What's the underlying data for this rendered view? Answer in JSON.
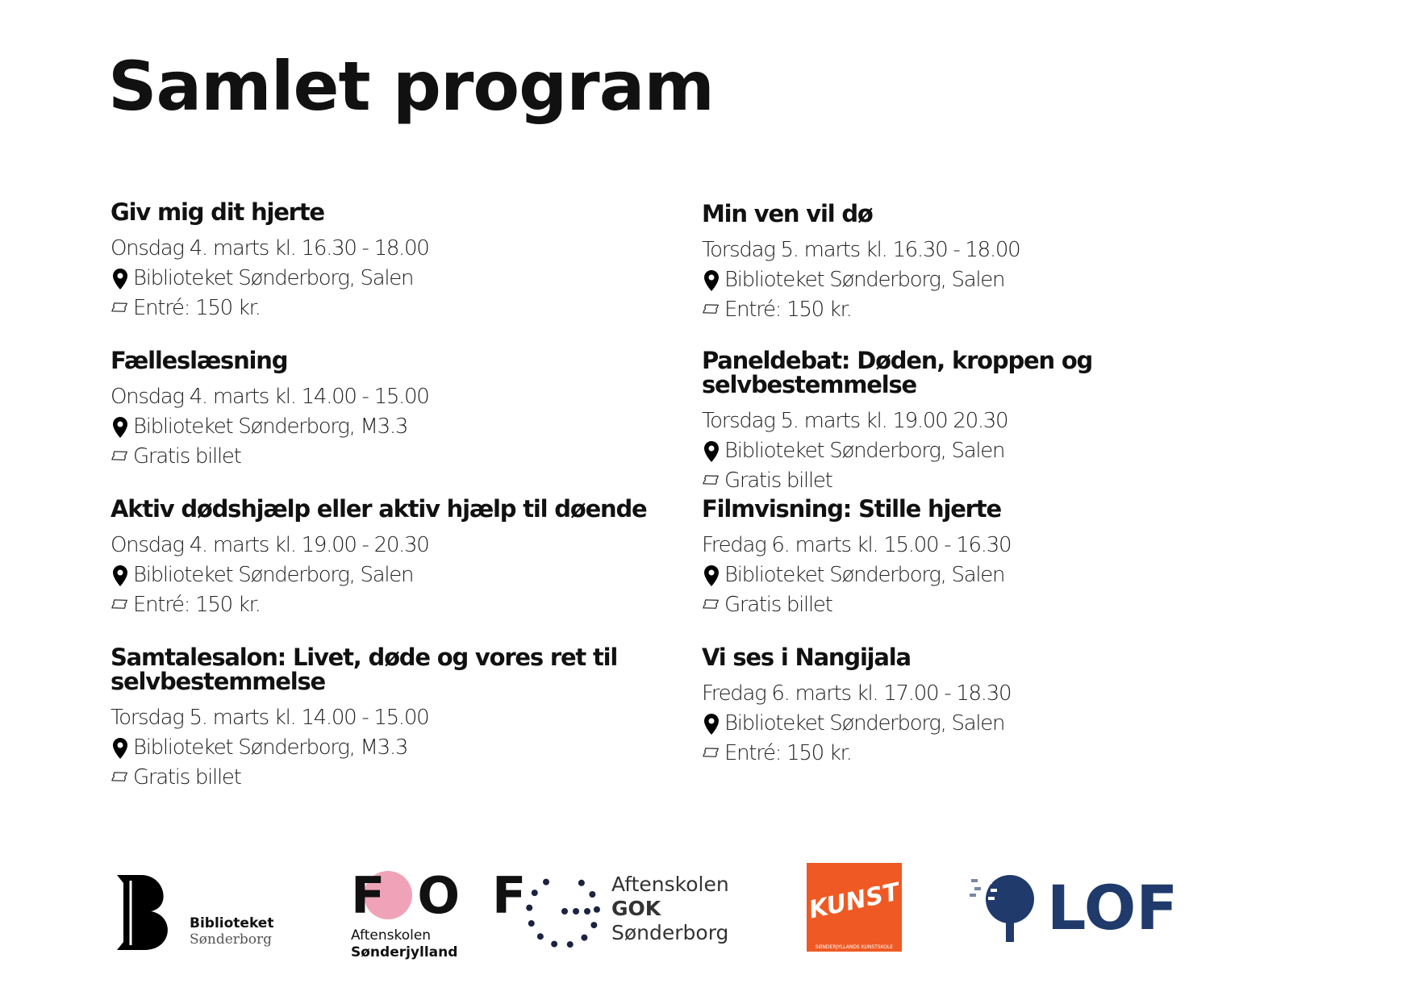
{
  "title": "Samlet program",
  "events": [
    {
      "title": "Giv mig dit hjerte",
      "date": "Onsdag 4. marts kl. 16.30 - 18.00",
      "location": "Biblioteket Sønderborg, Salen",
      "ticket": "Entré: 150 kr."
    },
    {
      "title": "Fælleslæsning",
      "date": "Onsdag 4. marts kl. 14.00 - 15.00",
      "location": "Biblioteket Sønderborg, M3.3",
      "ticket": "Gratis billet"
    },
    {
      "title": "Aktiv dødshjælp eller aktiv hjælp til døende",
      "date": "Onsdag 4. marts kl. 19.00 - 20.30",
      "location": "Biblioteket Sønderborg, Salen",
      "ticket": "Entré: 150 kr."
    },
    {
      "title": "Samtalesalon: Livet, døde og vores ret til selvbestemmelse",
      "date": "Torsdag 5. marts kl. 14.00 - 15.00",
      "location": "Biblioteket Sønderborg, M3.3",
      "ticket": "Gratis billet"
    },
    {
      "title": "Min ven vil dø",
      "date": "Torsdag 5. marts kl. 16.30 - 18.00",
      "location": "Biblioteket Sønderborg, Salen",
      "ticket": "Entré: 150 kr."
    },
    {
      "title": "Paneldebat: Døden, kroppen og selvbestemmelse",
      "date": "Torsdag 5. marts kl. 19.00   20.30",
      "location": "Biblioteket Sønderborg, Salen",
      "ticket": "Gratis billet"
    },
    {
      "title": "Filmvisning: Stille hjerte",
      "date": "Fredag 6. marts kl. 15.00 - 16.30",
      "location": "Biblioteket Sønderborg, Salen",
      "ticket": "Gratis billet"
    },
    {
      "title": "Vi ses i Nangijala",
      "date": "Fredag 6. marts kl. 17.00 - 18.30",
      "location": "Biblioteket Sønderborg, Salen",
      "ticket": "Entré: 150 kr."
    }
  ],
  "logos": {
    "bibliotek": {
      "line1": "Biblioteket",
      "line2": "Sønderborg"
    },
    "fof": {
      "mark": "FOF",
      "line1": "Aftenskolen",
      "line2": "Sønderjylland"
    },
    "gok": {
      "line1": "Aftenskolen",
      "line2": "GOK",
      "line3": "Sønderborg"
    },
    "kunst": {
      "mark": "KUNST",
      "caption": "SØNDERJYLLANDS KUNSTSKOLE"
    },
    "lof": {
      "mark": "LOF"
    }
  },
  "colors": {
    "kunst": "#ef5a24",
    "lof": "#1f3a6b",
    "fof_pink": "#f0a3b8"
  }
}
